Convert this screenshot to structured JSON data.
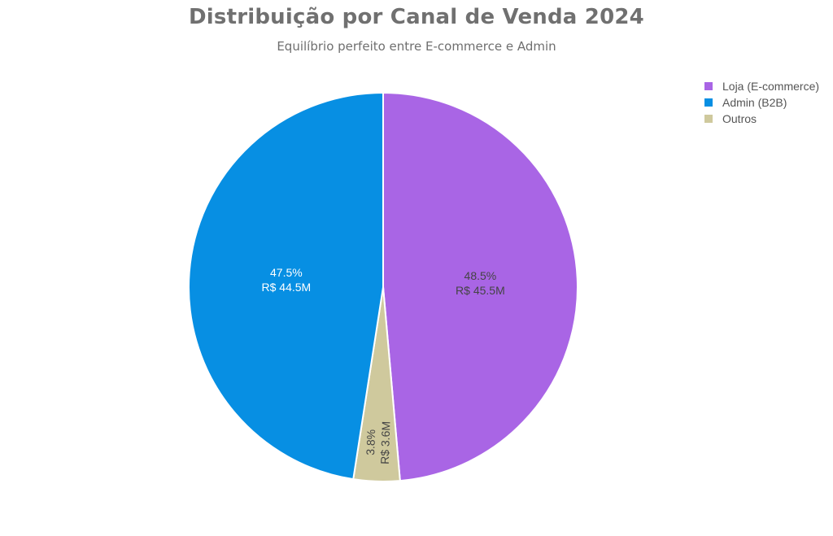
{
  "chart_data": {
    "type": "pie",
    "title": "Distribuição por Canal de Venda 2024",
    "subtitle": "Equilíbrio perfeito entre E-commerce e Admin",
    "legend_position": "top-right",
    "slices": [
      {
        "label": "Loja (E-commerce)",
        "value": 45.5,
        "percent": "48.5%",
        "value_label": "R$ 45.5M",
        "color": "#a965e5",
        "text_color": "#444444"
      },
      {
        "label": "Outros",
        "value": 3.6,
        "percent": "3.8%",
        "value_label": "R$ 3.6M",
        "color": "#cfc99d",
        "text_color": "#444444"
      },
      {
        "label": "Admin (B2B)",
        "value": 44.5,
        "percent": "47.5%",
        "value_label": "R$ 44.5M",
        "color": "#078fe3",
        "text_color": "#ffffff"
      }
    ],
    "legend": [
      {
        "label": "Loja (E-commerce)",
        "color": "#a965e5"
      },
      {
        "label": "Admin (B2B)",
        "color": "#078fe3"
      },
      {
        "label": "Outros",
        "color": "#cfc99d"
      }
    ]
  }
}
